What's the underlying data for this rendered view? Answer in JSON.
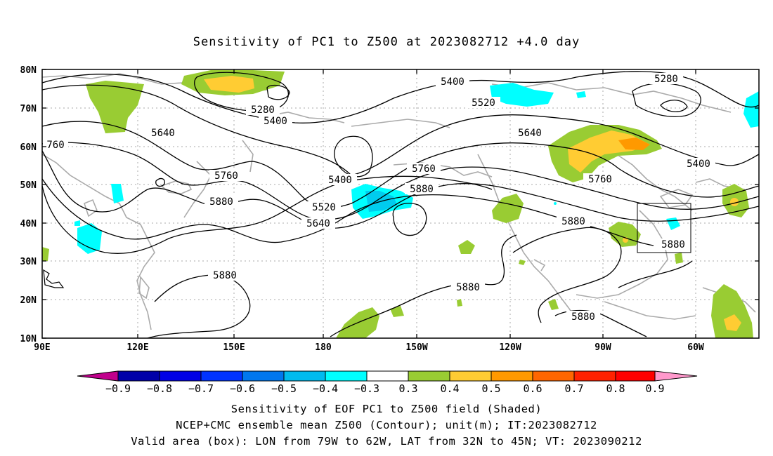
{
  "title": "Sensitivity of PC1 to Z500 at 2023082712 +4.0 day",
  "lat_labels": [
    "80N",
    "70N",
    "60N",
    "50N",
    "40N",
    "30N",
    "20N",
    "10N"
  ],
  "lon_labels": [
    "90E",
    "120E",
    "150E",
    "180",
    "150W",
    "120W",
    "90W",
    "60W"
  ],
  "contour_labels": [
    {
      "text": "5400"
    },
    {
      "text": "5280"
    },
    {
      "text": "5280"
    },
    {
      "text": "5400"
    },
    {
      "text": "5520"
    },
    {
      "text": "5640"
    },
    {
      "text": "5640"
    },
    {
      "text": "760"
    },
    {
      "text": "5760"
    },
    {
      "text": "5880"
    },
    {
      "text": "5400"
    },
    {
      "text": "5520"
    },
    {
      "text": "5640"
    },
    {
      "text": "5760"
    },
    {
      "text": "5880"
    },
    {
      "text": "5760"
    },
    {
      "text": "5880"
    },
    {
      "text": "5880"
    },
    {
      "text": "5880"
    },
    {
      "text": "5880"
    },
    {
      "text": "5880"
    },
    {
      "text": "5400"
    }
  ],
  "colorbar": {
    "labels": [
      "−0.9",
      "−0.8",
      "−0.7",
      "−0.6",
      "−0.5",
      "−0.4",
      "−0.3",
      "0.3",
      "0.4",
      "0.5",
      "0.6",
      "0.7",
      "0.8",
      "0.9"
    ],
    "colors": [
      "#c0008c",
      "#0000a8",
      "#0000e6",
      "#0033ff",
      "#0077ee",
      "#00bbee",
      "#00ffff",
      "#ffffff",
      "#99cc33",
      "#ffcc33",
      "#ff9900",
      "#ff6600",
      "#ff2200",
      "#ff0000",
      "#ff99cc"
    ]
  },
  "caption": {
    "line1": "Sensitivity of EOF PC1 to Z500 field (Shaded)",
    "line2": "NCEP+CMC ensemble mean Z500 (Contour); unit(m); IT:2023082712",
    "line3": "Valid area (box): LON from 79W to 62W, LAT from 32N to 45N; VT: 2023090212"
  },
  "valid_area": {
    "lon_from": "79W",
    "lon_to": "62W",
    "lat_from": "32N",
    "lat_to": "45N"
  }
}
